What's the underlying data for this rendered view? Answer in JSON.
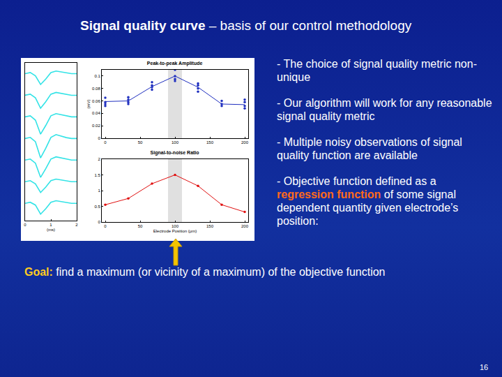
{
  "title": {
    "bold": "Signal quality curve",
    "rest": "– basis of our control methodology"
  },
  "bullets": [
    "- The choice of signal quality metric non-unique",
    "- Our algorithm will work for any reasonable signal quality metric",
    "- Multiple noisy observations of signal quality function are available"
  ],
  "bullet_last": {
    "before": "- Objective function defined as a",
    "highlight": "regression function",
    "after": "of some signal dependent quantity given electrode’s position:"
  },
  "goal": {
    "label": "Goal:",
    "text": "find a maximum (or vicinity of a maximum) of the objective function"
  },
  "page_number": "16",
  "chart_data": [
    {
      "type": "line",
      "color": "#33e3e6",
      "x": [
        0,
        0.2,
        0.4,
        0.6,
        0.8,
        1.0,
        1.2,
        1.4,
        1.6,
        1.8,
        2.0
      ],
      "series": [
        {
          "values": [
            6,
            6.05,
            5.9,
            5.5,
            5.75,
            6.05,
            6.12,
            6.08,
            6.03,
            6,
            6
          ]
        },
        {
          "values": [
            5,
            5.05,
            4.88,
            4.4,
            4.7,
            5.05,
            5.13,
            5.08,
            5.03,
            5,
            5
          ]
        },
        {
          "values": [
            4,
            4.05,
            3.85,
            3.2,
            3.6,
            4.05,
            4.15,
            4.1,
            4.04,
            4,
            4
          ]
        },
        {
          "values": [
            3,
            3.05,
            2.85,
            2.1,
            2.55,
            3.05,
            3.18,
            3.1,
            3.04,
            3,
            3
          ]
        },
        {
          "values": [
            2,
            2.05,
            1.86,
            1.2,
            1.6,
            2.05,
            2.15,
            2.1,
            2.04,
            2,
            2
          ]
        },
        {
          "values": [
            1,
            1.05,
            0.9,
            0.5,
            0.75,
            1.05,
            1.12,
            1.08,
            1.03,
            1,
            1
          ]
        },
        {
          "values": [
            0,
            0.05,
            -0.08,
            -0.5,
            -0.25,
            0.05,
            0.12,
            0.08,
            0.03,
            0,
            0
          ]
        }
      ],
      "xlabel": "(ms)",
      "xlim": [
        0,
        2
      ],
      "xticks": [
        0,
        1,
        2
      ],
      "ylim": [
        -0.8,
        6.5
      ],
      "tick_labels": "x"
    },
    {
      "type": "scatter",
      "title": "Peak-to-peak Amplitude",
      "ylabel": "(mV)",
      "color": "#1f2fbf",
      "marker": "dot",
      "x": [
        0,
        33,
        67,
        100,
        133,
        167,
        200
      ],
      "observations": [
        [
          0.065,
          0.058,
          0.055,
          0.052
        ],
        [
          0.066,
          0.062,
          0.058,
          0.055
        ],
        [
          0.09,
          0.085,
          0.082,
          0.078
        ],
        [
          0.11,
          0.1,
          0.095,
          0.092
        ],
        [
          0.088,
          0.085,
          0.08,
          0.075
        ],
        [
          0.06,
          0.055,
          0.052
        ],
        [
          0.062,
          0.058,
          0.052,
          0.048
        ]
      ],
      "values": [
        0.059,
        0.06,
        0.083,
        0.1,
        0.082,
        0.055,
        0.054
      ],
      "band": [
        90,
        110
      ],
      "xlim": [
        -5,
        205
      ],
      "xticks": [
        0,
        50,
        100,
        150,
        200
      ],
      "ylim": [
        0,
        0.11
      ],
      "yticks": [
        0,
        0.02,
        0.04,
        0.06,
        0.08,
        0.1
      ]
    },
    {
      "type": "line",
      "title": "Signal-to-noise Ratio",
      "xlabel": "Electrode Position (μm)",
      "color": "#e01010",
      "marker": "dot",
      "x": [
        0,
        33,
        67,
        100,
        133,
        167,
        200
      ],
      "values": [
        0.55,
        0.75,
        1.22,
        1.5,
        1.15,
        0.55,
        0.32
      ],
      "band": [
        90,
        110
      ],
      "xlim": [
        -5,
        205
      ],
      "xticks": [
        0,
        50,
        100,
        150,
        200
      ],
      "ylim": [
        0,
        2
      ],
      "yticks": [
        0,
        0.5,
        1,
        1.5,
        2
      ]
    }
  ]
}
